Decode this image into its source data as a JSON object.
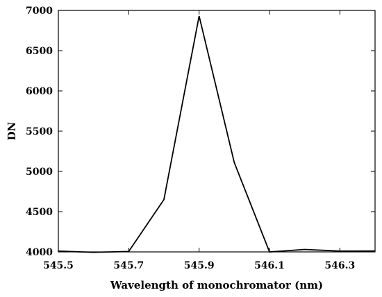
{
  "chart_data": {
    "type": "line",
    "title": "",
    "xlabel": "Wavelength of monochromator (nm)",
    "ylabel": "DN",
    "xlim": [
      545.5,
      546.4
    ],
    "ylim": [
      4000,
      7000
    ],
    "x_ticks": [
      "545.5",
      "545.7",
      "545.9",
      "546.1",
      "546.3"
    ],
    "y_ticks": [
      "4000",
      "4500",
      "5000",
      "5500",
      "6000",
      "6500",
      "7000"
    ],
    "grid": false,
    "legend": "none",
    "series": [
      {
        "color": "#000000",
        "x": [
          545.5,
          545.6,
          545.7,
          545.8,
          545.9,
          546.0,
          546.1,
          546.2,
          546.3,
          546.4
        ],
        "y": [
          4010,
          3995,
          4005,
          4650,
          6930,
          5110,
          4000,
          4030,
          4010,
          4012
        ]
      }
    ]
  }
}
